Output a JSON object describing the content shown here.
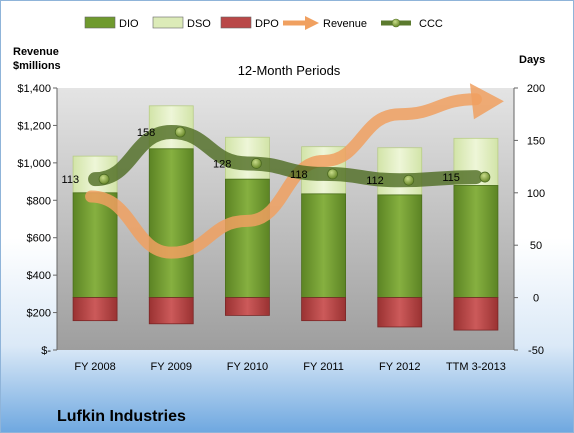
{
  "chart_data": {
    "type": "bar",
    "title": "Lufkin Industries",
    "subtitle": "12-Month Periods",
    "left_axis": {
      "title_line1": "Revenue",
      "title_line2": "$millions",
      "ylim": [
        0,
        1400
      ],
      "ticks": [
        0,
        200,
        400,
        600,
        800,
        1000,
        1200,
        1400
      ],
      "tick_labels": [
        "$-",
        "$200",
        "$400",
        "$600",
        "$800",
        "$1,000",
        "$1,200",
        "$1,400"
      ]
    },
    "right_axis": {
      "title": "Days",
      "ylim": [
        -50,
        200
      ],
      "ticks": [
        -50,
        0,
        50,
        100,
        150,
        200
      ],
      "tick_labels": [
        "-50",
        "0",
        "50",
        "100",
        "150",
        "200"
      ]
    },
    "categories": [
      "FY 2008",
      "FY 2009",
      "FY 2010",
      "FY 2011",
      "FY 2012",
      "TTM 3-2013"
    ],
    "legend": {
      "placement": "top",
      "items": [
        {
          "name": "DIO",
          "kind": "box",
          "color": "#6f9a2e"
        },
        {
          "name": "DSO",
          "kind": "box",
          "color": "#dcebb8"
        },
        {
          "name": "DPO",
          "kind": "box",
          "color": "#b94848"
        },
        {
          "name": "Revenue",
          "kind": "arrow",
          "color": "#f0a060"
        },
        {
          "name": "CCC",
          "kind": "line",
          "color": "#5b7a2e"
        }
      ]
    },
    "series": [
      {
        "name": "DIO",
        "axis": "right",
        "values": [
          100,
          142,
          113,
          99,
          98,
          107
        ]
      },
      {
        "name": "DSO",
        "axis": "right",
        "values": [
          35,
          41,
          40,
          45,
          45,
          45
        ]
      },
      {
        "name": "DPO",
        "axis": "right",
        "values": [
          -22,
          -25,
          -17,
          -22,
          -28,
          -31
        ]
      },
      {
        "name": "Revenue",
        "axis": "left",
        "values": [
          820,
          520,
          690,
          1010,
          1260,
          1340
        ]
      },
      {
        "name": "CCC",
        "axis": "right",
        "values": [
          113,
          158,
          128,
          118,
          112,
          115
        ]
      }
    ],
    "ccc_labels": [
      "113",
      "158",
      "128",
      "118",
      "112",
      "115"
    ],
    "colors": {
      "dio": "#6f9a2e",
      "dso": "#dcebb8",
      "dpo": "#b94848",
      "revenue": "#f0a060",
      "ccc": "#4d6b22",
      "plot_bg": "#b8b8b8"
    }
  }
}
